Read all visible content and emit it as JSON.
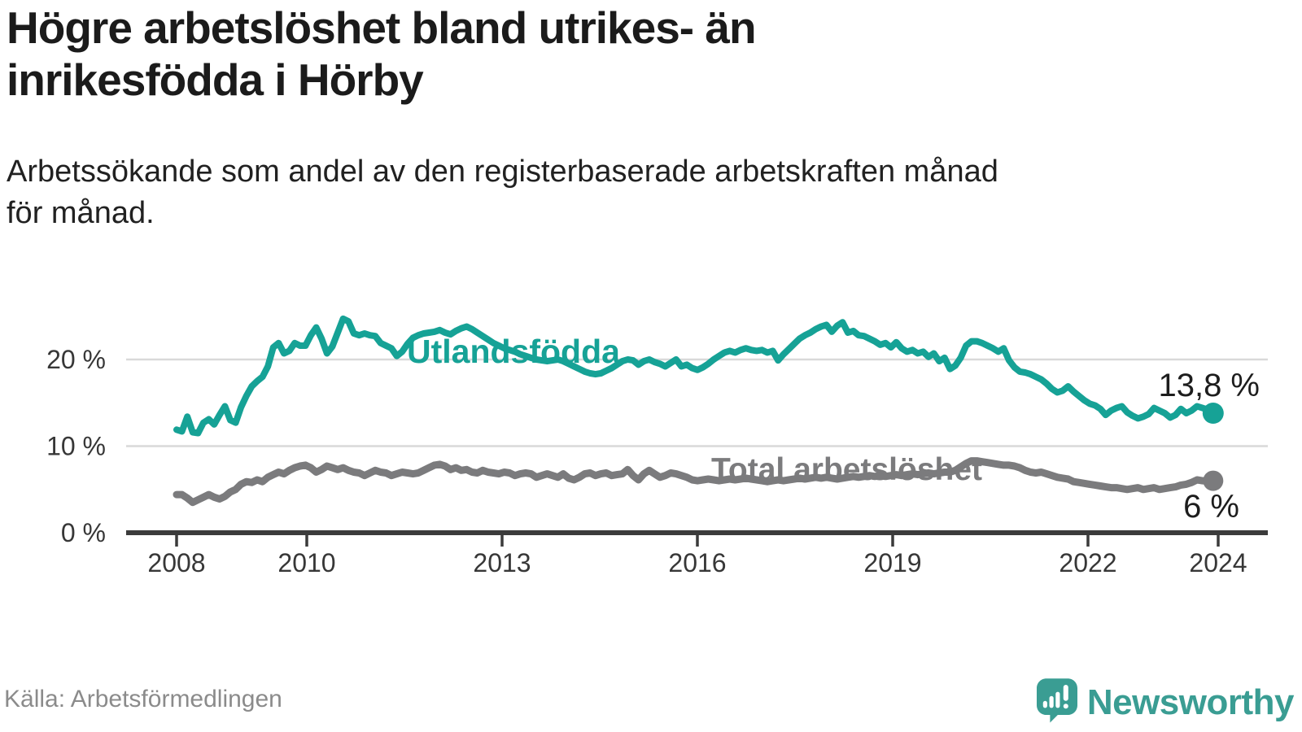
{
  "header": {
    "title": "Högre arbetslöshet bland utrikes- än\ninrikesfödda i Hörby",
    "subtitle": "Arbetssökande som andel av den registerbaserade arbetskraften månad\nför månad."
  },
  "footer": {
    "source": "Källa: Arbetsförmedlingen",
    "brand": "Newsworthy"
  },
  "chart_data": {
    "type": "line",
    "title": "Arbetssökande som andel av den registerbaserade arbetskraften månad för månad",
    "x_interval": "monthly",
    "x_start": "2008-01",
    "x_end": "2024-02",
    "grid": "horizontal",
    "legend_position": "inline-labels",
    "style": {
      "grid_color": "#d9d9d9",
      "axis_color": "#3b3b3b",
      "axis_text_color": "#373737",
      "background": "#ffffff"
    },
    "x_axis": {
      "start_year": 2008,
      "ticks": [
        2008,
        2010,
        2013,
        2016,
        2019,
        2022,
        2024
      ]
    },
    "y_axis": {
      "range": [
        0,
        26
      ],
      "ticks": [
        {
          "label": "0 %",
          "value": 0
        },
        {
          "label": "10 %",
          "value": 10
        },
        {
          "label": "20 %",
          "value": 20
        }
      ]
    },
    "series": [
      {
        "name": "Utlandsfödda",
        "color": "#16a296",
        "end_label": "13,8 %",
        "end_value": 13.8,
        "values": [
          11.9,
          11.7,
          13.4,
          11.6,
          11.5,
          12.7,
          13.1,
          12.5,
          13.6,
          14.6,
          13.0,
          12.7,
          14.5,
          15.8,
          16.9,
          17.5,
          18.0,
          19.2,
          21.4,
          21.9,
          20.7,
          21.0,
          21.9,
          21.6,
          21.6,
          22.8,
          23.7,
          22.4,
          20.7,
          21.5,
          23.1,
          24.7,
          24.4,
          23.0,
          22.8,
          23.0,
          22.8,
          22.7,
          21.9,
          21.6,
          21.3,
          20.4,
          20.9,
          21.8,
          22.5,
          22.8,
          23.0,
          23.1,
          23.2,
          23.4,
          23.1,
          22.9,
          23.3,
          23.6,
          23.8,
          23.5,
          23.1,
          22.7,
          22.3,
          21.9,
          21.6,
          21.3,
          21.1,
          20.9,
          20.6,
          20.4,
          20.2,
          20.0,
          19.9,
          19.8,
          19.9,
          20.0,
          19.8,
          19.5,
          19.2,
          18.9,
          18.6,
          18.4,
          18.3,
          18.4,
          18.7,
          19.0,
          19.4,
          19.8,
          20.0,
          19.9,
          19.4,
          19.8,
          20.0,
          19.7,
          19.5,
          19.2,
          19.6,
          20.0,
          19.2,
          19.4,
          19.0,
          18.8,
          19.1,
          19.5,
          20.0,
          20.4,
          20.8,
          21.0,
          20.8,
          21.1,
          21.3,
          21.1,
          21.0,
          21.1,
          20.8,
          21.0,
          19.9,
          20.6,
          21.2,
          21.8,
          22.4,
          22.8,
          23.1,
          23.5,
          23.8,
          24.0,
          23.2,
          23.9,
          24.3,
          23.1,
          23.3,
          22.8,
          22.7,
          22.4,
          22.1,
          21.7,
          21.9,
          21.4,
          22.0,
          21.3,
          20.9,
          21.1,
          20.7,
          20.9,
          20.3,
          20.7,
          19.8,
          20.2,
          18.9,
          19.3,
          20.2,
          21.6,
          22.1,
          22.1,
          21.9,
          21.6,
          21.3,
          20.9,
          21.3,
          19.9,
          19.1,
          18.6,
          18.5,
          18.3,
          18.0,
          17.7,
          17.2,
          16.6,
          16.2,
          16.4,
          16.9,
          16.3,
          15.8,
          15.3,
          14.9,
          14.7,
          14.3,
          13.6,
          14.1,
          14.4,
          14.6,
          13.9,
          13.5,
          13.2,
          13.4,
          13.7,
          14.4,
          14.1,
          13.8,
          13.3,
          13.6,
          14.3,
          13.8,
          14.1,
          14.6,
          14.4,
          14.2,
          13.8
        ]
      },
      {
        "name": "Total arbetslöshet",
        "color": "#7b7b7d",
        "end_label": "6 %",
        "end_value": 6,
        "values": [
          4.4,
          4.4,
          4.0,
          3.5,
          3.8,
          4.1,
          4.4,
          4.1,
          3.9,
          4.2,
          4.7,
          5.0,
          5.6,
          5.9,
          5.8,
          6.1,
          5.9,
          6.4,
          6.7,
          7.0,
          6.8,
          7.2,
          7.5,
          7.7,
          7.8,
          7.5,
          7.0,
          7.3,
          7.7,
          7.5,
          7.3,
          7.5,
          7.2,
          7.0,
          6.9,
          6.6,
          6.9,
          7.2,
          7.0,
          6.9,
          6.6,
          6.8,
          7.0,
          6.9,
          6.8,
          6.9,
          7.2,
          7.5,
          7.8,
          7.9,
          7.7,
          7.3,
          7.5,
          7.2,
          7.3,
          7.0,
          6.9,
          7.2,
          7.0,
          6.9,
          6.8,
          7.0,
          6.9,
          6.6,
          6.8,
          6.9,
          6.8,
          6.4,
          6.6,
          6.8,
          6.6,
          6.4,
          6.8,
          6.3,
          6.1,
          6.4,
          6.8,
          6.9,
          6.6,
          6.8,
          6.9,
          6.6,
          6.7,
          6.8,
          7.3,
          6.6,
          6.1,
          6.8,
          7.2,
          6.8,
          6.4,
          6.6,
          6.9,
          6.8,
          6.6,
          6.4,
          6.1,
          6.0,
          6.1,
          6.2,
          6.1,
          6.0,
          6.1,
          6.2,
          6.1,
          6.2,
          6.3,
          6.2,
          6.1,
          6.0,
          5.9,
          6.0,
          6.1,
          6.0,
          6.1,
          6.2,
          6.3,
          6.2,
          6.3,
          6.4,
          6.3,
          6.4,
          6.3,
          6.2,
          6.3,
          6.4,
          6.5,
          6.4,
          6.5,
          6.6,
          6.5,
          6.6,
          6.5,
          6.6,
          6.7,
          6.6,
          6.7,
          6.8,
          6.7,
          6.8,
          6.9,
          6.8,
          6.9,
          7.0,
          7.0,
          7.2,
          7.6,
          8.0,
          8.3,
          8.3,
          8.2,
          8.1,
          8.0,
          7.9,
          7.8,
          7.8,
          7.7,
          7.5,
          7.2,
          7.0,
          6.9,
          7.0,
          6.8,
          6.6,
          6.4,
          6.3,
          6.2,
          5.9,
          5.8,
          5.7,
          5.6,
          5.5,
          5.4,
          5.3,
          5.2,
          5.2,
          5.1,
          5.0,
          5.1,
          5.2,
          5.0,
          5.1,
          5.2,
          5.0,
          5.1,
          5.2,
          5.3,
          5.5,
          5.6,
          5.8,
          6.1,
          6.0,
          6.0,
          6.0
        ]
      }
    ]
  }
}
